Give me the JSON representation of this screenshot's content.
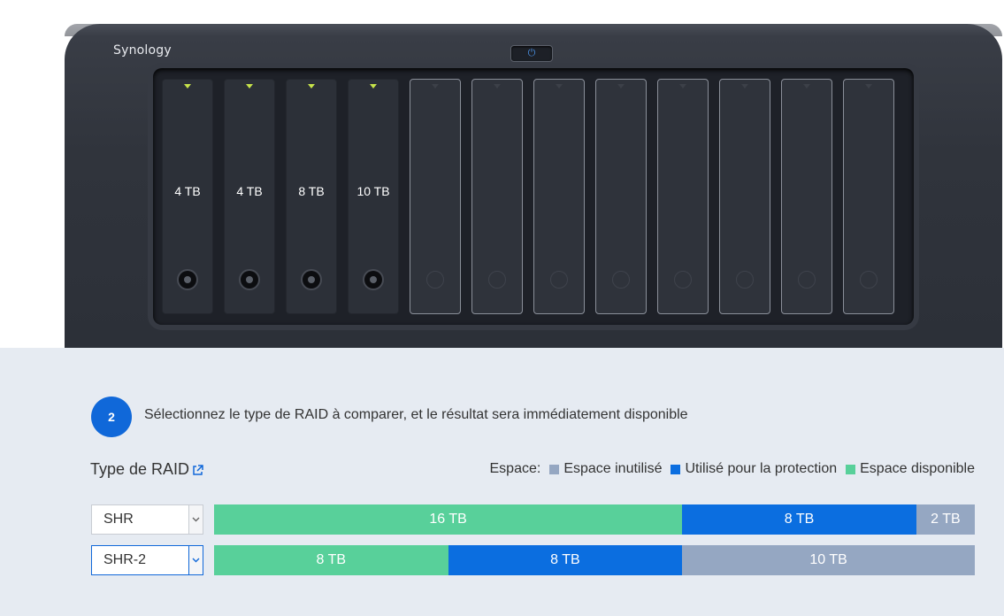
{
  "device": {
    "brand": "Synology",
    "power_icon": "power-icon",
    "bays": [
      {
        "label": "4 TB",
        "filled": true
      },
      {
        "label": "4 TB",
        "filled": true
      },
      {
        "label": "8 TB",
        "filled": true
      },
      {
        "label": "10 TB",
        "filled": true
      },
      {
        "label": "",
        "filled": false
      },
      {
        "label": "",
        "filled": false
      },
      {
        "label": "",
        "filled": false
      },
      {
        "label": "",
        "filled": false
      },
      {
        "label": "",
        "filled": false
      },
      {
        "label": "",
        "filled": false
      },
      {
        "label": "",
        "filled": false
      },
      {
        "label": "",
        "filled": false
      }
    ]
  },
  "step": {
    "number": "2",
    "text": "Sélectionnez le type de RAID à comparer, et le résultat sera immédiatement disponible"
  },
  "raid": {
    "label": "Type de RAID",
    "link_icon": "external-link-icon"
  },
  "legend": {
    "title": "Espace:",
    "unused": "Espace inutilisé",
    "protection": "Utilisé pour la protection",
    "available": "Espace disponible"
  },
  "colors": {
    "available": "#58d09a",
    "protection": "#0b6ee0",
    "unused": "#95a7c2",
    "accent": "#1068d9"
  },
  "rows": [
    {
      "select": "SHR",
      "active": false,
      "segments": [
        {
          "type": "available",
          "label": "16 TB",
          "tb": 16
        },
        {
          "type": "protection",
          "label": "8 TB",
          "tb": 8
        },
        {
          "type": "unused",
          "label": "2 TB",
          "tb": 2
        }
      ]
    },
    {
      "select": "SHR-2",
      "active": true,
      "segments": [
        {
          "type": "available",
          "label": "8 TB",
          "tb": 8
        },
        {
          "type": "protection",
          "label": "8 TB",
          "tb": 8
        },
        {
          "type": "unused",
          "label": "10 TB",
          "tb": 10
        }
      ]
    }
  ]
}
